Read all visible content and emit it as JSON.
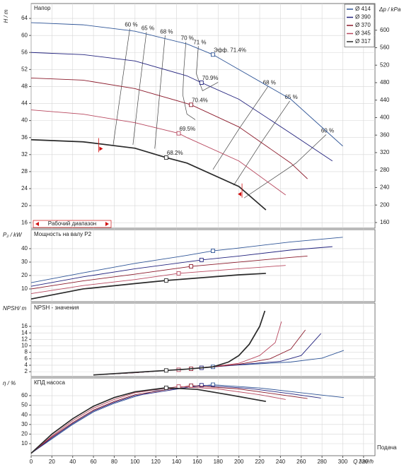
{
  "chart_data": [
    {
      "type": "line",
      "title": "Напор",
      "ylabel": "H / m",
      "y2label": "Δp / kPa",
      "xlim": [
        0,
        331
      ],
      "ylim": [
        14.7,
        67.5
      ],
      "yticks": [
        16,
        20,
        24,
        28,
        32,
        36,
        40,
        44,
        48,
        52,
        56,
        60,
        64
      ],
      "y2lim": [
        147,
        661
      ],
      "y2ticks": [
        160,
        200,
        240,
        280,
        320,
        360,
        400,
        440,
        480,
        520,
        560,
        600
      ],
      "grid": true,
      "legend": "upper right",
      "series": [
        {
          "name": "Ø 414",
          "color": "#2f5597",
          "x": [
            0,
            50,
            100,
            150,
            175,
            200,
            250,
            300
          ],
          "values": [
            63,
            62.5,
            61,
            58,
            55.5,
            52,
            45,
            34
          ],
          "marker_x": 175,
          "marker_y": 55.5,
          "marker_label": "Эфф.  71.4%"
        },
        {
          "name": "Ø 390",
          "color": "#23237e",
          "x": [
            0,
            50,
            100,
            150,
            164,
            200,
            250,
            290
          ],
          "values": [
            56,
            55.5,
            54,
            50.5,
            48.9,
            45,
            37,
            30.5
          ],
          "marker_x": 164,
          "marker_y": 48.9,
          "marker_label": "70.9%"
        },
        {
          "name": "Ø 370",
          "color": "#8b1a2b",
          "x": [
            0,
            50,
            100,
            150,
            154,
            200,
            250,
            266
          ],
          "values": [
            50,
            49.5,
            47.5,
            44,
            43.7,
            38.5,
            30,
            26.3
          ],
          "marker_x": 154,
          "marker_y": 43.7,
          "marker_label": "70.4%"
        },
        {
          "name": "Ø 345",
          "color": "#b8485f",
          "x": [
            0,
            50,
            100,
            142,
            150,
            200,
            245
          ],
          "values": [
            42.5,
            41.5,
            39.5,
            37,
            36,
            30.5,
            22.5
          ],
          "marker_x": 142,
          "marker_y": 37,
          "marker_label": "69.5%"
        },
        {
          "name": "Ø 317",
          "color": "#2a2a2a",
          "x": [
            0,
            50,
            100,
            130,
            150,
            200,
            226
          ],
          "values": [
            35.5,
            35,
            33.5,
            31.3,
            30,
            24.5,
            19
          ],
          "marker_x": 130,
          "marker_y": 31.3,
          "marker_label": "68.2%"
        }
      ],
      "iso_lines": [
        {
          "label": "60 %",
          "x": [
            95,
            87,
            79
          ],
          "values": [
            61.6,
            48,
            34.3
          ]
        },
        {
          "label": "65 %",
          "x": [
            111,
            104,
            98
          ],
          "values": [
            60.8,
            47,
            34.3
          ]
        },
        {
          "label": "68 %",
          "x": [
            129,
            124,
            119
          ],
          "values": [
            60,
            47,
            33.4
          ]
        },
        {
          "label": "70 %",
          "x": [
            149,
            147,
            146,
            150,
            158
          ],
          "values": [
            58.5,
            52,
            46,
            41.5,
            40.2
          ]
        },
        {
          "label": "71 %",
          "x": [
            161,
            159,
            165,
            180
          ],
          "values": [
            57.5,
            51,
            47,
            49
          ]
        },
        {
          "label": "68 %",
          "x": [
            228,
            200,
            175
          ],
          "values": [
            48,
            38,
            28.5
          ]
        },
        {
          "label": "65 %",
          "x": [
            249,
            222,
            195
          ],
          "values": [
            44.6,
            35,
            24.8
          ]
        },
        {
          "label": "60 %",
          "x": [
            284,
            255,
            205
          ],
          "values": [
            36.7,
            30,
            21.8
          ]
        }
      ],
      "operating_range": {
        "label": "Рабочий диапазон",
        "x": [
          65,
          203
        ]
      }
    },
    {
      "type": "line",
      "title": "Мощность на валу P2",
      "ylabel": "P₂ / kW",
      "xlim": [
        0,
        331
      ],
      "ylim": [
        0.5,
        54.2
      ],
      "yticks": [
        10,
        20,
        30,
        40
      ],
      "grid": true,
      "series": [
        {
          "color": "#2f5597",
          "x": [
            0,
            50,
            100,
            150,
            175,
            200,
            250,
            300
          ],
          "values": [
            14.7,
            22,
            29,
            35,
            38.4,
            40.5,
            45,
            48.5
          ],
          "marker_x": 175,
          "marker_y": 38.4
        },
        {
          "color": "#23237e",
          "x": [
            0,
            50,
            100,
            164,
            200,
            250,
            290
          ],
          "values": [
            12,
            19,
            25,
            31.6,
            34.5,
            39,
            41.5
          ],
          "marker_x": 164,
          "marker_y": 31.6
        },
        {
          "color": "#8b1a2b",
          "x": [
            0,
            50,
            100,
            154,
            200,
            250,
            266
          ],
          "values": [
            10,
            16,
            21,
            26.8,
            30,
            33.5,
            34.5
          ],
          "marker_x": 154,
          "marker_y": 26.8
        },
        {
          "color": "#b8485f",
          "x": [
            0,
            50,
            100,
            142,
            200,
            245
          ],
          "values": [
            6.5,
            12.5,
            17,
            21.6,
            25,
            27.5
          ],
          "marker_x": 142,
          "marker_y": 21.6
        },
        {
          "color": "#2a2a2a",
          "x": [
            0,
            50,
            100,
            130,
            200,
            226
          ],
          "values": [
            2.5,
            10,
            14,
            16.3,
            20.5,
            21.6
          ],
          "marker_x": 130,
          "marker_y": 16.3
        }
      ]
    },
    {
      "type": "line",
      "title": "NPSH - значения",
      "ylabel": "NPSH/ m",
      "xlim": [
        0,
        331
      ],
      "ylim": [
        0.5,
        23.2
      ],
      "yticks": [
        2,
        4,
        6,
        8,
        10,
        12,
        14,
        16
      ],
      "grid": true,
      "series": [
        {
          "color": "#2f5597",
          "x": [
            60,
            100,
            130,
            150,
            175,
            200,
            250,
            280,
            301
          ],
          "values": [
            1,
            1.7,
            2.4,
            2.8,
            3.5,
            4.1,
            5,
            6.2,
            8.6
          ],
          "marker_x": 175,
          "marker_y": 3.5
        },
        {
          "color": "#23237e",
          "x": [
            60,
            100,
            130,
            150,
            164,
            175,
            200,
            240,
            260,
            279
          ],
          "values": [
            1,
            1.7,
            2.4,
            2.8,
            3.2,
            3.5,
            4.2,
            5.2,
            7,
            13.8
          ],
          "marker_x": 164,
          "marker_y": 3.2
        },
        {
          "color": "#8b1a2b",
          "x": [
            60,
            100,
            130,
            154,
            175,
            200,
            230,
            250,
            264
          ],
          "values": [
            1,
            1.7,
            2.4,
            2.9,
            3.5,
            4.3,
            6,
            9,
            14.9
          ],
          "marker_x": 154,
          "marker_y": 2.9
        },
        {
          "color": "#b8485f",
          "x": [
            60,
            100,
            130,
            142,
            175,
            200,
            220,
            235,
            241
          ],
          "values": [
            1,
            1.7,
            2.4,
            2.6,
            3.6,
            4.6,
            7,
            11,
            17.5
          ],
          "marker_x": 142,
          "marker_y": 2.6
        },
        {
          "color": "#2a2a2a",
          "x": [
            60,
            100,
            130,
            150,
            175,
            190,
            200,
            210,
            220,
            225
          ],
          "values": [
            1,
            1.8,
            2.4,
            2.8,
            3.5,
            5,
            7,
            10.5,
            16,
            20.8
          ],
          "marker_x": 130,
          "marker_y": 2.4
        }
      ]
    },
    {
      "type": "line",
      "title": "КПД насоса",
      "ylabel": "η / %",
      "xlabel": "Q / m³/h",
      "xnote": "Подача",
      "xlim": [
        0,
        331
      ],
      "ylim": [
        -2.5,
        78.4
      ],
      "yticks": [
        10,
        20,
        30,
        40,
        50,
        60
      ],
      "xticks": [
        0,
        20,
        40,
        60,
        80,
        100,
        120,
        140,
        160,
        180,
        200,
        220,
        240,
        260,
        280,
        300,
        320
      ],
      "grid": true,
      "series": [
        {
          "color": "#2f5597",
          "x": [
            0,
            20,
            40,
            60,
            80,
            100,
            120,
            175,
            220,
            260,
            301
          ],
          "values": [
            0,
            15,
            30,
            43,
            52,
            59,
            65,
            71.4,
            68,
            63,
            58
          ],
          "marker_x": 175,
          "marker_y": 71.4
        },
        {
          "color": "#23237e",
          "x": [
            0,
            20,
            40,
            60,
            80,
            100,
            164,
            210,
            250,
            279
          ],
          "values": [
            0,
            16,
            31,
            44,
            53,
            60,
            70.9,
            67.5,
            62,
            57.5
          ],
          "marker_x": 164,
          "marker_y": 70.9
        },
        {
          "color": "#8b1a2b",
          "x": [
            0,
            20,
            40,
            60,
            80,
            100,
            154,
            200,
            240,
            266
          ],
          "values": [
            0,
            17,
            32,
            45,
            54,
            61,
            70.4,
            67,
            61,
            57
          ],
          "marker_x": 154,
          "marker_y": 70.4
        },
        {
          "color": "#b8485f",
          "x": [
            0,
            20,
            40,
            60,
            80,
            100,
            142,
            180,
            220,
            245
          ],
          "values": [
            0,
            18,
            34,
            47,
            56,
            63,
            69.5,
            67,
            61,
            56
          ],
          "marker_x": 142,
          "marker_y": 69.5
        },
        {
          "color": "#2a2a2a",
          "x": [
            0,
            20,
            40,
            60,
            80,
            100,
            130,
            160,
            190,
            226
          ],
          "values": [
            0,
            20,
            36,
            49,
            58,
            64,
            68.2,
            66.5,
            61,
            54
          ],
          "marker_x": 130,
          "marker_y": 68.2
        }
      ]
    }
  ]
}
